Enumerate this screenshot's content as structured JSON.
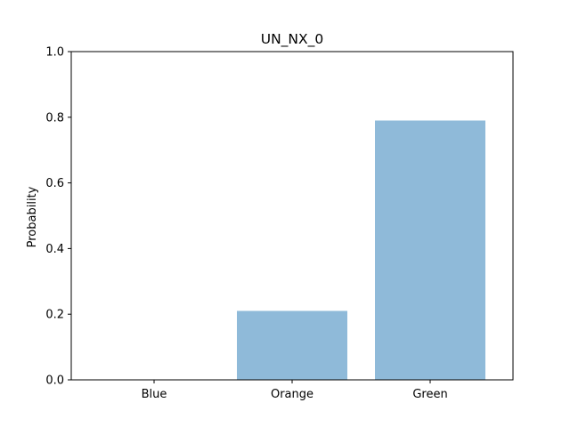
{
  "chart_data": {
    "type": "bar",
    "title": "UN_NX_0",
    "xlabel": "",
    "ylabel": "Probability",
    "categories": [
      "Blue",
      "Orange",
      "Green"
    ],
    "values": [
      0.0,
      0.21,
      0.79
    ],
    "ylim": [
      0,
      1.0
    ],
    "yticks": [
      "0.0",
      "0.2",
      "0.4",
      "0.6",
      "0.8",
      "1.0"
    ],
    "bar_color": "#8fbad9",
    "grid": false,
    "legend": "none"
  }
}
